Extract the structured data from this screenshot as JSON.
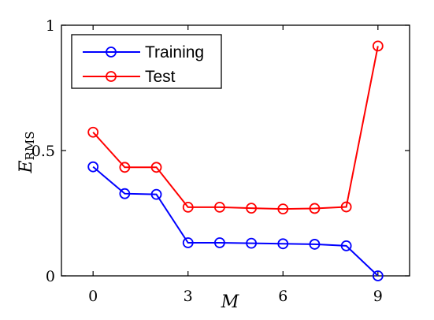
{
  "chart_data": {
    "type": "line",
    "xlabel": "M",
    "ylabel": {
      "main": "E",
      "sub": "RMS"
    },
    "xlim": [
      -1,
      10
    ],
    "ylim": [
      0,
      1
    ],
    "xticks": [
      0,
      3,
      6,
      9
    ],
    "yticks": [
      0,
      0.5,
      1
    ],
    "ytick_labels": [
      "0",
      "0.5",
      "1"
    ],
    "legend_position": "top-left",
    "grid": false,
    "x": [
      0,
      1,
      2,
      3,
      4,
      5,
      6,
      7,
      8,
      9
    ],
    "series": [
      {
        "name": "Training",
        "color": "#0000ff",
        "marker": "circle-open",
        "values": [
          0.435,
          0.328,
          0.325,
          0.132,
          0.132,
          0.13,
          0.128,
          0.126,
          0.12,
          0.0
        ]
      },
      {
        "name": "Test",
        "color": "#ff0000",
        "marker": "circle-open",
        "values": [
          0.573,
          0.433,
          0.433,
          0.274,
          0.274,
          0.27,
          0.267,
          0.269,
          0.275,
          0.917
        ]
      }
    ]
  }
}
